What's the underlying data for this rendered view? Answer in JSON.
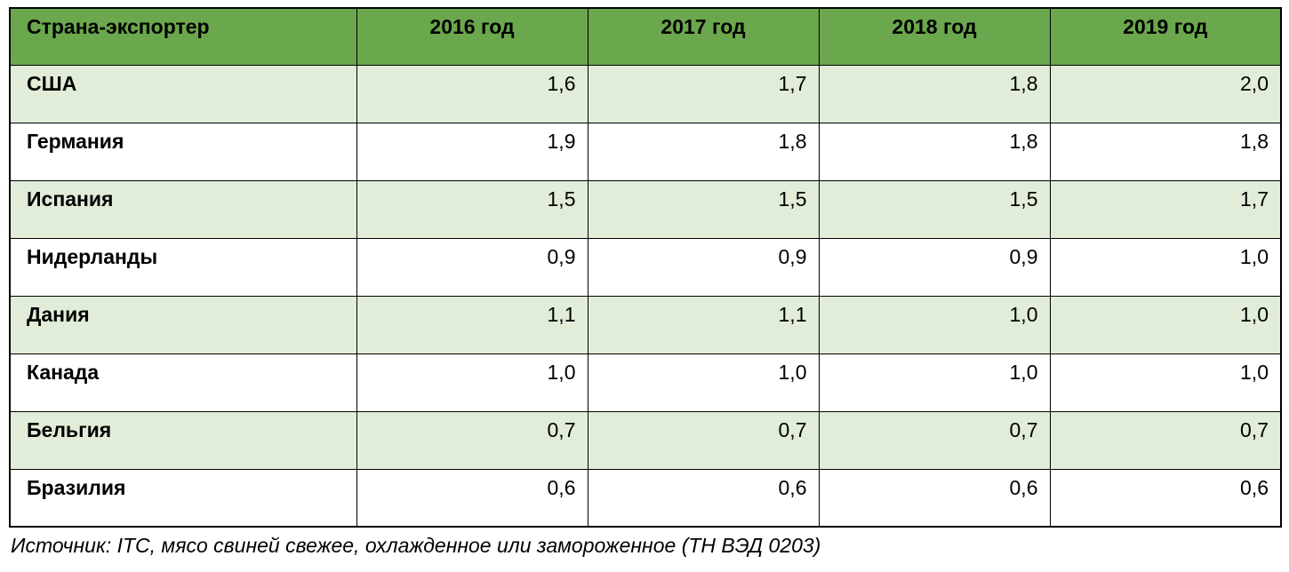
{
  "colors": {
    "header_bg": "#6BA84D",
    "stripe_bg": "#E1EDD8",
    "border": "#000000",
    "text": "#000000"
  },
  "table": {
    "columns": [
      "Страна-экспортер",
      "2016 год",
      "2017 год",
      "2018 год",
      "2019 год"
    ],
    "rows": [
      {
        "country": "США",
        "values": [
          "1,6",
          "1,7",
          "1,8",
          "2,0"
        ]
      },
      {
        "country": "Германия",
        "values": [
          "1,9",
          "1,8",
          "1,8",
          "1,8"
        ]
      },
      {
        "country": "Испания",
        "values": [
          "1,5",
          "1,5",
          "1,5",
          "1,7"
        ]
      },
      {
        "country": "Нидерланды",
        "values": [
          "0,9",
          "0,9",
          "0,9",
          "1,0"
        ]
      },
      {
        "country": "Дания",
        "values": [
          "1,1",
          "1,1",
          "1,0",
          "1,0"
        ]
      },
      {
        "country": "Канада",
        "values": [
          "1,0",
          "1,0",
          "1,0",
          "1,0"
        ]
      },
      {
        "country": "Бельгия",
        "values": [
          "0,7",
          "0,7",
          "0,7",
          "0,7"
        ]
      },
      {
        "country": "Бразилия",
        "values": [
          "0,6",
          "0,6",
          "0,6",
          "0,6"
        ]
      }
    ]
  },
  "source_note": "Источник: ITC, мясо свиней свежее, охлажденное или замороженное (ТН ВЭД 0203)",
  "chart_data": {
    "type": "table",
    "title": "",
    "categories": [
      "2016 год",
      "2017 год",
      "2018 год",
      "2019 год"
    ],
    "row_header_label": "Страна-экспортер",
    "series": [
      {
        "name": "США",
        "values": [
          1.6,
          1.7,
          1.8,
          2.0
        ]
      },
      {
        "name": "Германия",
        "values": [
          1.9,
          1.8,
          1.8,
          1.8
        ]
      },
      {
        "name": "Испания",
        "values": [
          1.5,
          1.5,
          1.5,
          1.7
        ]
      },
      {
        "name": "Нидерланды",
        "values": [
          0.9,
          0.9,
          0.9,
          1.0
        ]
      },
      {
        "name": "Дания",
        "values": [
          1.1,
          1.1,
          1.0,
          1.0
        ]
      },
      {
        "name": "Канада",
        "values": [
          1.0,
          1.0,
          1.0,
          1.0
        ]
      },
      {
        "name": "Бельгия",
        "values": [
          0.7,
          0.7,
          0.7,
          0.7
        ]
      },
      {
        "name": "Бразилия",
        "values": [
          0.6,
          0.6,
          0.6,
          0.6
        ]
      }
    ],
    "annotations": [
      "Источник: ITC, мясо свиней свежее, охлажденное или замороженное (ТН ВЭД 0203)"
    ],
    "decimal_separator": ","
  }
}
